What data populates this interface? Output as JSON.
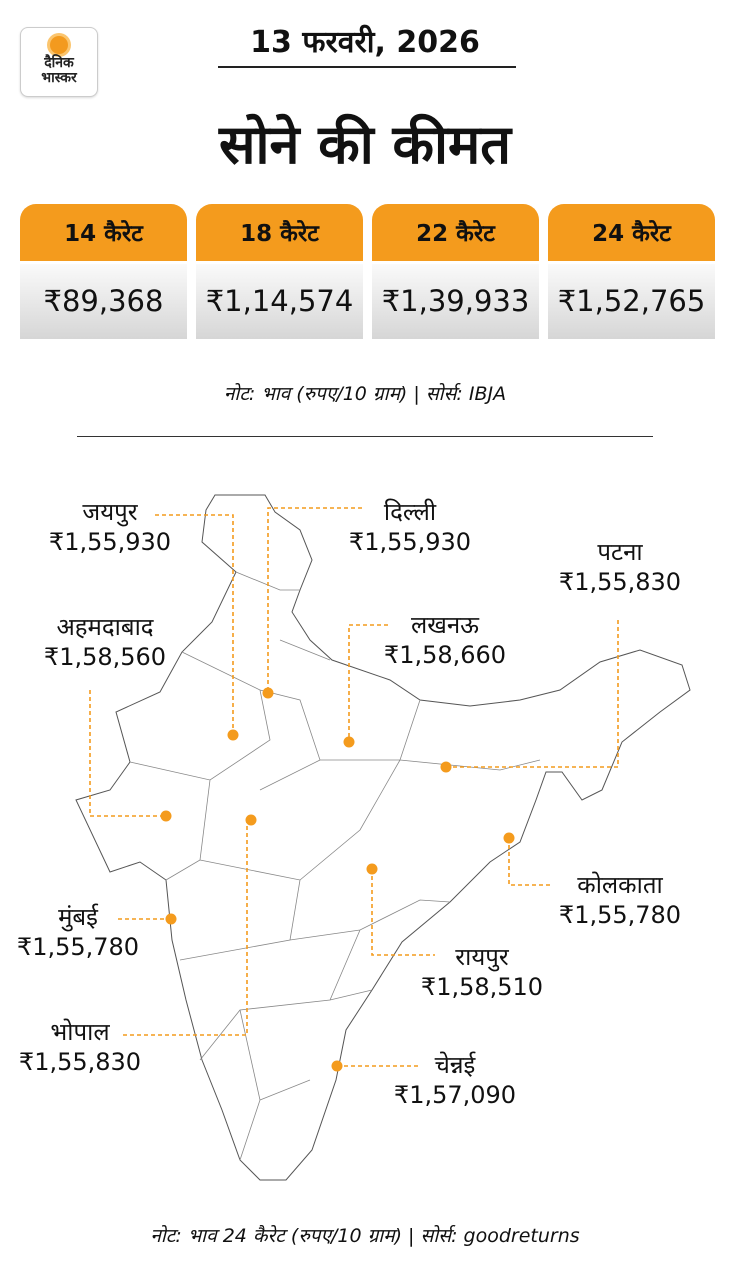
{
  "logo": {
    "line1": "दैनिक",
    "line2": "भास्कर"
  },
  "date": "13 फरवरी, 2026",
  "title": "सोने की कीमत",
  "accent_color": "#f49b1d",
  "karat_prices": [
    {
      "label": "14 कैरेट",
      "price": "₹89,368"
    },
    {
      "label": "18 कैरेट",
      "price": "₹1,14,574"
    },
    {
      "label": "22 कैरेट",
      "price": "₹1,39,933"
    },
    {
      "label": "24 कैरेट",
      "price": "₹1,52,765"
    }
  ],
  "note_top": "नोट: भाव (रुपए/10 ग्राम)  |  सोर्स: IBJA",
  "cities": [
    {
      "name": "जयपुर",
      "price": "₹1,55,930"
    },
    {
      "name": "दिल्ली",
      "price": "₹1,55,930"
    },
    {
      "name": "पटना",
      "price": "₹1,55,830"
    },
    {
      "name": "अहमदाबाद",
      "price": "₹1,58,560"
    },
    {
      "name": "लखनऊ",
      "price": "₹1,58,660"
    },
    {
      "name": "कोलकाता",
      "price": "₹1,55,780"
    },
    {
      "name": "मुंबई",
      "price": "₹1,55,780"
    },
    {
      "name": "रायपुर",
      "price": "₹1,58,510"
    },
    {
      "name": "भोपाल",
      "price": "₹1,55,830"
    },
    {
      "name": "चेन्नई",
      "price": "₹1,57,090"
    }
  ],
  "note_bottom": "नोट: भाव 24 कैरेट (रुपए/10 ग्राम)  |  सोर्स: goodreturns"
}
